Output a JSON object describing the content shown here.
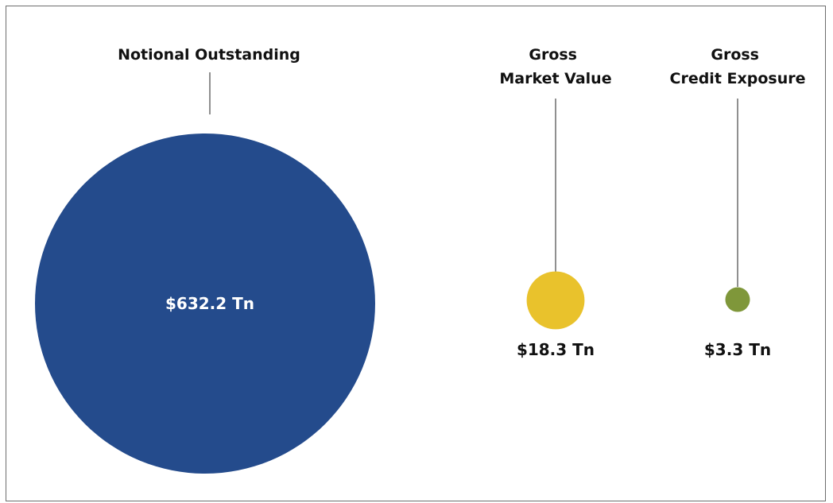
{
  "chart_data": {
    "type": "bubble",
    "unit": "Tn",
    "series": [
      {
        "label_lines": [
          "Notional Outstanding"
        ],
        "value": 632.2,
        "value_label": "$632.2 Tn",
        "color": "#244b8c",
        "value_position": "inside"
      },
      {
        "label_lines": [
          "Gross",
          "Market Value"
        ],
        "value": 18.3,
        "value_label": "$18.3 Tn",
        "color": "#e9c22c",
        "value_position": "below"
      },
      {
        "label_lines": [
          "Gross",
          "Credit Exposure"
        ],
        "value": 3.3,
        "value_label": "$3.3 Tn",
        "color": "#7f973a",
        "value_position": "below"
      }
    ]
  }
}
